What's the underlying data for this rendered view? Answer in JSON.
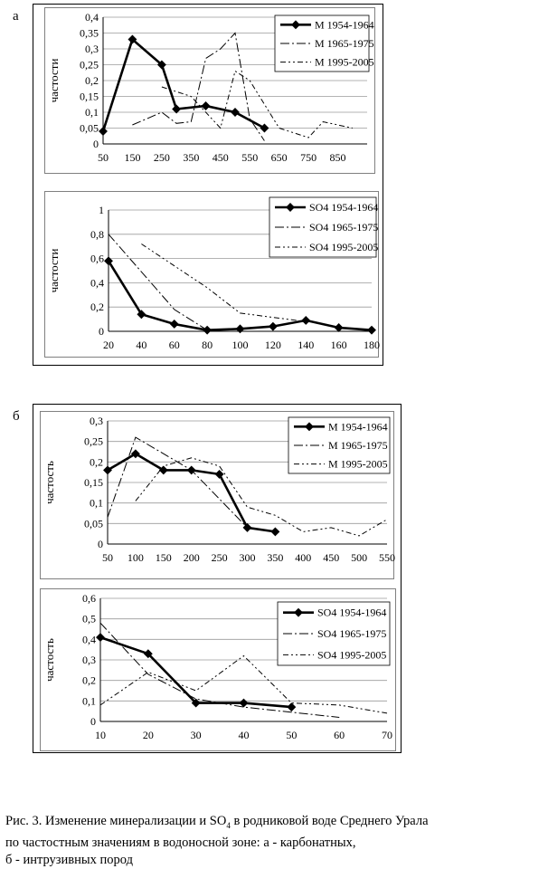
{
  "panels": {
    "a": "а",
    "b": "б"
  },
  "caption": {
    "line1_before_sub": "Рис. 3. Изменение минерализации и SO",
    "line1_sub": "4",
    "line1_after_sub": " в родниковой воде Среднего Урала",
    "line2": " по частостным значениям в водоносной зоне: а - карбонатных,",
    "line3": "б - интрузивных пород"
  },
  "chart_data": [
    {
      "id": "a1",
      "type": "line",
      "ylabel": "частости",
      "ylim": [
        0,
        0.4
      ],
      "yticks": [
        0,
        0.05,
        0.1,
        0.15,
        0.2,
        0.25,
        0.3,
        0.35,
        0.4
      ],
      "yticklabels": [
        "0",
        "0,05",
        "0,1",
        "0,15",
        "0,2",
        "0,25",
        "0,3",
        "0,35",
        "0,4"
      ],
      "xlim": [
        50,
        950
      ],
      "xticks": [
        50,
        150,
        250,
        350,
        450,
        550,
        650,
        750,
        850
      ],
      "xticklabels": [
        "50",
        "150",
        "250",
        "350",
        "450",
        "550",
        "650",
        "750",
        "850"
      ],
      "grid": true,
      "legend": "top-right",
      "series": [
        {
          "name": "М 1954-1964",
          "style": "bold-marker",
          "points": [
            [
              50,
              0.04
            ],
            [
              150,
              0.33
            ],
            [
              250,
              0.25
            ],
            [
              300,
              0.11
            ],
            [
              400,
              0.12
            ],
            [
              500,
              0.1
            ],
            [
              600,
              0.05
            ]
          ]
        },
        {
          "name": "М 1965-1975",
          "style": "dashdot",
          "points": [
            [
              150,
              0.06
            ],
            [
              200,
              0.08
            ],
            [
              250,
              0.1
            ],
            [
              300,
              0.065
            ],
            [
              350,
              0.07
            ],
            [
              400,
              0.27
            ],
            [
              450,
              0.3
            ],
            [
              500,
              0.35
            ],
            [
              550,
              0.08
            ],
            [
              600,
              0.01
            ]
          ]
        },
        {
          "name": "М 1995-2005",
          "style": "dashdotdot",
          "points": [
            [
              250,
              0.18
            ],
            [
              350,
              0.15
            ],
            [
              450,
              0.05
            ],
            [
              500,
              0.23
            ],
            [
              550,
              0.2
            ],
            [
              650,
              0.05
            ],
            [
              750,
              0.02
            ],
            [
              800,
              0.07
            ],
            [
              900,
              0.05
            ]
          ]
        }
      ]
    },
    {
      "id": "a2",
      "type": "line",
      "ylabel": "частости",
      "ylim": [
        0,
        1
      ],
      "yticks": [
        0,
        0.2,
        0.4,
        0.6,
        0.8,
        1
      ],
      "yticklabels": [
        "0",
        "0,2",
        "0,4",
        "0,6",
        "0,8",
        "1"
      ],
      "xlim": [
        20,
        180
      ],
      "xticks": [
        20,
        40,
        60,
        80,
        100,
        120,
        140,
        160,
        180
      ],
      "xticklabels": [
        "20",
        "40",
        "60",
        "80",
        "100",
        "120",
        "140",
        "160",
        "180"
      ],
      "grid": true,
      "legend": "top-right",
      "series": [
        {
          "name": "SO4 1954-1964",
          "style": "bold-marker",
          "points": [
            [
              20,
              0.58
            ],
            [
              40,
              0.14
            ],
            [
              60,
              0.06
            ],
            [
              80,
              0.01
            ],
            [
              100,
              0.02
            ],
            [
              120,
              0.04
            ],
            [
              140,
              0.09
            ],
            [
              160,
              0.03
            ],
            [
              180,
              0.01
            ]
          ]
        },
        {
          "name": "SO4 1965-1975",
          "style": "dashdot",
          "points": [
            [
              20,
              0.8
            ],
            [
              40,
              0.49
            ],
            [
              60,
              0.18
            ],
            [
              80,
              0.01
            ]
          ]
        },
        {
          "name": "SO4 1995-2005",
          "style": "dashdotdot",
          "points": [
            [
              40,
              0.72
            ],
            [
              80,
              0.36
            ],
            [
              100,
              0.15
            ],
            [
              140,
              0.08
            ]
          ]
        }
      ]
    },
    {
      "id": "b1",
      "type": "line",
      "ylabel": "частость",
      "ylim": [
        0,
        0.3
      ],
      "yticks": [
        0,
        0.05,
        0.1,
        0.15,
        0.2,
        0.25,
        0.3
      ],
      "yticklabels": [
        "0",
        "0,05",
        "0,1",
        "0,15",
        "0,2",
        "0,25",
        "0,3"
      ],
      "xlim": [
        50,
        550
      ],
      "xticks": [
        50,
        100,
        150,
        200,
        250,
        300,
        350,
        400,
        450,
        500,
        550
      ],
      "xticklabels": [
        "50",
        "100",
        "150",
        "200",
        "250",
        "300",
        "350",
        "400",
        "450",
        "500",
        "550"
      ],
      "grid": true,
      "legend": "top-right",
      "series": [
        {
          "name": "М 1954-1964",
          "style": "bold-marker",
          "points": [
            [
              50,
              0.18
            ],
            [
              100,
              0.22
            ],
            [
              150,
              0.18
            ],
            [
              200,
              0.18
            ],
            [
              250,
              0.17
            ],
            [
              300,
              0.04
            ],
            [
              350,
              0.03
            ]
          ]
        },
        {
          "name": "М 1965-1975",
          "style": "dashdot",
          "points": [
            [
              50,
              0.065
            ],
            [
              100,
              0.26
            ],
            [
              200,
              0.18
            ],
            [
              300,
              0.04
            ],
            [
              350,
              0.03
            ]
          ]
        },
        {
          "name": "М 1995-2005",
          "style": "dashdotdot",
          "points": [
            [
              100,
              0.105
            ],
            [
              150,
              0.19
            ],
            [
              200,
              0.21
            ],
            [
              250,
              0.19
            ],
            [
              300,
              0.09
            ],
            [
              350,
              0.07
            ],
            [
              400,
              0.03
            ],
            [
              450,
              0.04
            ],
            [
              500,
              0.02
            ],
            [
              550,
              0.06
            ]
          ]
        }
      ]
    },
    {
      "id": "b2",
      "type": "line",
      "ylabel": "частость",
      "ylim": [
        0,
        0.6
      ],
      "yticks": [
        0,
        0.1,
        0.2,
        0.3,
        0.4,
        0.5,
        0.6
      ],
      "yticklabels": [
        "0",
        "0,1",
        "0,2",
        "0,3",
        "0,4",
        "0,5",
        "0,6"
      ],
      "xlim": [
        10,
        70
      ],
      "xticks": [
        10,
        20,
        30,
        40,
        50,
        60,
        70
      ],
      "xticklabels": [
        "10",
        "20",
        "30",
        "40",
        "50",
        "60",
        "70"
      ],
      "grid": true,
      "legend": "top-right",
      "series": [
        {
          "name": "SO4 1954-1964",
          "style": "bold-marker",
          "points": [
            [
              10,
              0.41
            ],
            [
              20,
              0.33
            ],
            [
              30,
              0.09
            ],
            [
              40,
              0.09
            ],
            [
              50,
              0.07
            ]
          ]
        },
        {
          "name": "SO4 1965-1975",
          "style": "dashdot",
          "points": [
            [
              10,
              0.48
            ],
            [
              20,
              0.23
            ],
            [
              30,
              0.11
            ],
            [
              40,
              0.07
            ],
            [
              60,
              0.02
            ]
          ]
        },
        {
          "name": "SO4 1995-2005",
          "style": "dashdotdot",
          "points": [
            [
              10,
              0.08
            ],
            [
              20,
              0.24
            ],
            [
              30,
              0.15
            ],
            [
              40,
              0.32
            ],
            [
              50,
              0.09
            ],
            [
              60,
              0.08
            ],
            [
              70,
              0.04
            ]
          ]
        }
      ]
    }
  ]
}
